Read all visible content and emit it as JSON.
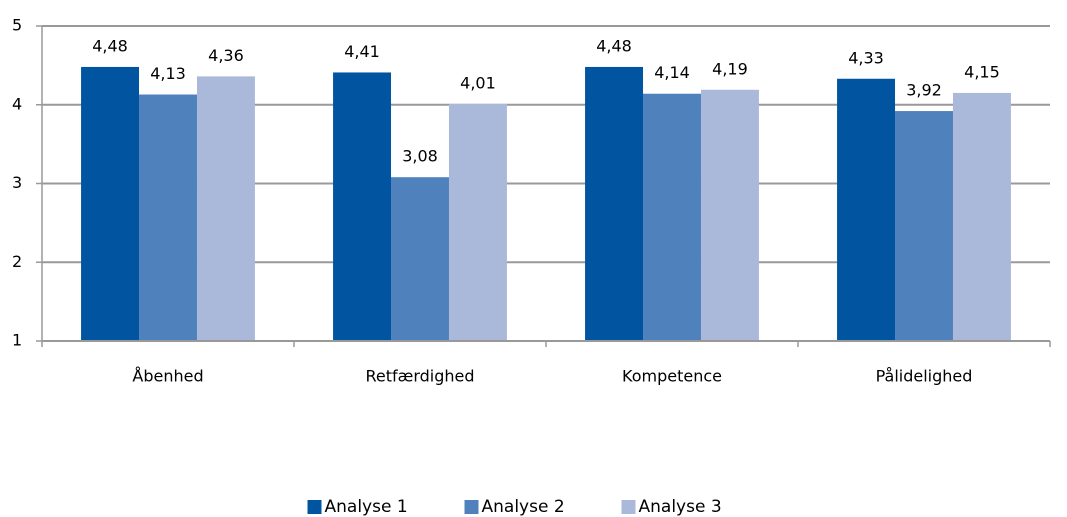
{
  "chart_data": {
    "type": "bar",
    "categories": [
      "Åbenhed",
      "Retfærdighed",
      "Kompetence",
      "Pålidelighed"
    ],
    "series": [
      {
        "name": "Analyse 1",
        "color": "#0054a0",
        "values": [
          4.48,
          4.41,
          4.48,
          4.33
        ],
        "value_labels": [
          "4,48",
          "4,41",
          "4,48",
          "4,33"
        ]
      },
      {
        "name": "Analyse 2",
        "color": "#4f81bd",
        "values": [
          4.13,
          3.08,
          4.14,
          3.92
        ],
        "value_labels": [
          "4,13",
          "3,08",
          "4,14",
          "3,92"
        ]
      },
      {
        "name": "Analyse 3",
        "color": "#aab9d9",
        "values": [
          4.36,
          4.01,
          4.19,
          4.15
        ],
        "value_labels": [
          "4,36",
          "4,01",
          "4,19",
          "4,15"
        ]
      }
    ],
    "ylim": [
      1,
      5
    ],
    "yticks": [
      1,
      2,
      3,
      4,
      5
    ],
    "grid": true,
    "legend": "bottom"
  }
}
